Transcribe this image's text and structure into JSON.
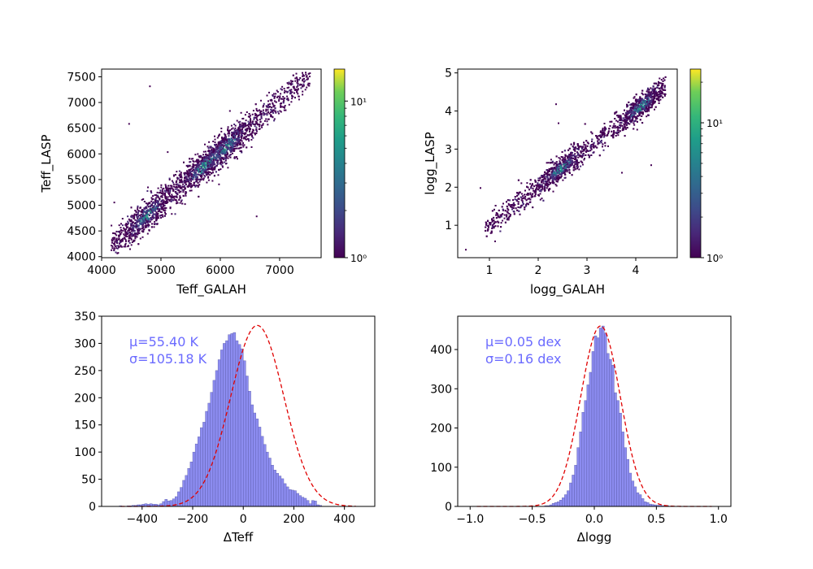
{
  "colors": {
    "hist_fill": "#8c8cf0",
    "hist_edge": "#5a5aa8",
    "fit_line": "#e00000",
    "annotation": "#6b6bff",
    "viridis_low": "#440154",
    "viridis_mid": "#21918c",
    "viridis_high": "#fde725"
  },
  "chart_data": [
    {
      "id": "teff_scatter",
      "type": "heatmap",
      "xlabel": "Teff_GALAH",
      "ylabel": "Teff_LASP",
      "xlim": [
        4000,
        7700
      ],
      "ylim": [
        3980,
        7650
      ],
      "xticks": [
        4000,
        5000,
        6000,
        7000
      ],
      "xticklabels": [
        "4000",
        "5000",
        "6000",
        "7000"
      ],
      "yticks": [
        4000,
        4500,
        5000,
        5500,
        6000,
        6500,
        7000,
        7500
      ],
      "yticklabels": [
        "4000",
        "4500",
        "5000",
        "5500",
        "6000",
        "6500",
        "7000",
        "7500"
      ],
      "relation": {
        "x_range": [
          4150,
          7500
        ],
        "slope": 1.0,
        "offset": 60,
        "scatter": 150,
        "density_peaks": [
          4750,
          5700,
          6100
        ]
      },
      "outliers": [
        [
          4200,
          5070
        ],
        [
          4450,
          6600
        ],
        [
          4800,
          7330
        ],
        [
          6600,
          4800
        ],
        [
          5100,
          6050
        ]
      ],
      "colorbar": {
        "scale": "log",
        "range": [
          1,
          16
        ],
        "ticks": [
          1,
          10
        ],
        "ticklabels": [
          "10⁰",
          "10¹"
        ]
      }
    },
    {
      "id": "logg_scatter",
      "type": "heatmap",
      "xlabel": "logg_GALAH",
      "ylabel": "logg_LASP",
      "xlim": [
        0.35,
        4.85
      ],
      "ylim": [
        0.15,
        5.1
      ],
      "xticks": [
        1,
        2,
        3,
        4
      ],
      "xticklabels": [
        "1",
        "2",
        "3",
        "4"
      ],
      "yticks": [
        1,
        2,
        3,
        4,
        5
      ],
      "yticklabels": [
        "1",
        "2",
        "3",
        "4",
        "5"
      ],
      "relation": {
        "x_range": [
          0.9,
          4.6
        ],
        "slope": 1.0,
        "offset": 0.05,
        "scatter": 0.16,
        "density_peaks": [
          2.45,
          4.1
        ]
      },
      "outliers": [
        [
          0.5,
          0.38
        ],
        [
          0.8,
          2.0
        ],
        [
          1.1,
          0.6
        ],
        [
          2.35,
          4.2
        ],
        [
          3.7,
          2.4
        ],
        [
          4.3,
          2.6
        ],
        [
          2.4,
          3.7
        ]
      ],
      "colorbar": {
        "scale": "log",
        "range": [
          1,
          25
        ],
        "ticks": [
          1,
          10
        ],
        "ticklabels": [
          "10⁰",
          "10¹"
        ]
      }
    },
    {
      "id": "dteff_hist",
      "type": "bar",
      "xlabel": "ΔTeff",
      "ylabel": "",
      "xlim": [
        -560,
        520
      ],
      "ylim": [
        0,
        350
      ],
      "xticks": [
        -400,
        -200,
        0,
        200,
        400
      ],
      "xticklabels": [
        "−400",
        "−200",
        "0",
        "200",
        "400"
      ],
      "yticks": [
        0,
        50,
        100,
        150,
        200,
        250,
        300,
        350
      ],
      "yticklabels": [
        "0",
        "50",
        "100",
        "150",
        "200",
        "250",
        "300",
        "350"
      ],
      "bin_start": -490,
      "bin_width": 10,
      "values": [
        1,
        0,
        0,
        1,
        1,
        2,
        2,
        3,
        3,
        4,
        5,
        4,
        5,
        4,
        4,
        3,
        5,
        9,
        13,
        10,
        11,
        14,
        18,
        27,
        35,
        48,
        57,
        70,
        82,
        100,
        115,
        128,
        145,
        155,
        175,
        190,
        210,
        232,
        250,
        270,
        288,
        300,
        305,
        316,
        318,
        320,
        305,
        298,
        290,
        268,
        240,
        212,
        187,
        172,
        161,
        146,
        129,
        114,
        100,
        89,
        76,
        67,
        61,
        56,
        51,
        42,
        36,
        31,
        30,
        29,
        24,
        20,
        17,
        15,
        11,
        5,
        11,
        10,
        3,
        2
      ],
      "fit": {
        "mu": 55.4,
        "sigma": 105.18,
        "amplitude": 333
      },
      "annotation": [
        "μ=55.40 K",
        "σ=105.18 K"
      ]
    },
    {
      "id": "dlogg_hist",
      "type": "bar",
      "xlabel": "Δlogg",
      "ylabel": "",
      "xlim": [
        -1.1,
        1.1
      ],
      "ylim": [
        0,
        485
      ],
      "xticks": [
        -1.0,
        -0.5,
        0.0,
        0.5,
        1.0
      ],
      "xticklabels": [
        "−1.0",
        "−0.5",
        "0.0",
        "0.5",
        "1.0"
      ],
      "yticks": [
        0,
        100,
        200,
        300,
        400
      ],
      "yticklabels": [
        "0",
        "100",
        "200",
        "300",
        "400"
      ],
      "bin_start": -0.4,
      "bin_width": 0.02,
      "values": [
        2,
        2,
        4,
        8,
        10,
        12,
        16,
        22,
        30,
        40,
        60,
        80,
        105,
        150,
        190,
        240,
        270,
        310,
        342,
        395,
        435,
        430,
        455,
        460,
        442,
        390,
        375,
        360,
        290,
        270,
        238,
        190,
        150,
        120,
        85,
        65,
        50,
        35,
        30,
        20,
        12,
        10,
        6,
        5,
        4,
        3,
        3,
        2,
        2,
        2
      ],
      "fit": {
        "mu": 0.05,
        "sigma": 0.16,
        "amplitude": 460
      },
      "annotation": [
        "μ=0.05 dex",
        "σ=0.16 dex"
      ]
    }
  ]
}
